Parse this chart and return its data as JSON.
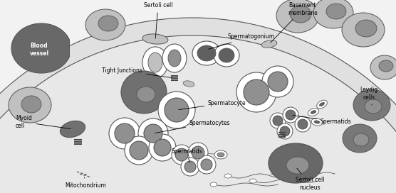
{
  "bg_color": "#f2f2f2",
  "dark_gray": "#606060",
  "med_gray": "#909090",
  "light_gray": "#c0c0c0",
  "very_light": "#e8e8e8",
  "tubule_fill": "#e0e0e0",
  "white": "#ffffff",
  "outline": "#555555",
  "labels": {
    "blood_vessel": "Blood\nvessel",
    "sertoli_cell": "Sertoli cell",
    "basement_membrane": "Basement\nmembrane",
    "spermatogonium": "Spermatogonium",
    "tight_junctions": "Tight Junctions",
    "spermatocyte": "Spermatocyte",
    "spermatocytes": "Spermatocytes",
    "spermatids_bot": "Spermatids",
    "spermatids_right": "Spermatids",
    "myoid_cell": "Myoid\ncell",
    "mitochondrium": "Mitochondrium",
    "leydig_cells": "Leydig\ncells",
    "sertoli_nucleus": "Sertoli cell\nnucleus"
  }
}
